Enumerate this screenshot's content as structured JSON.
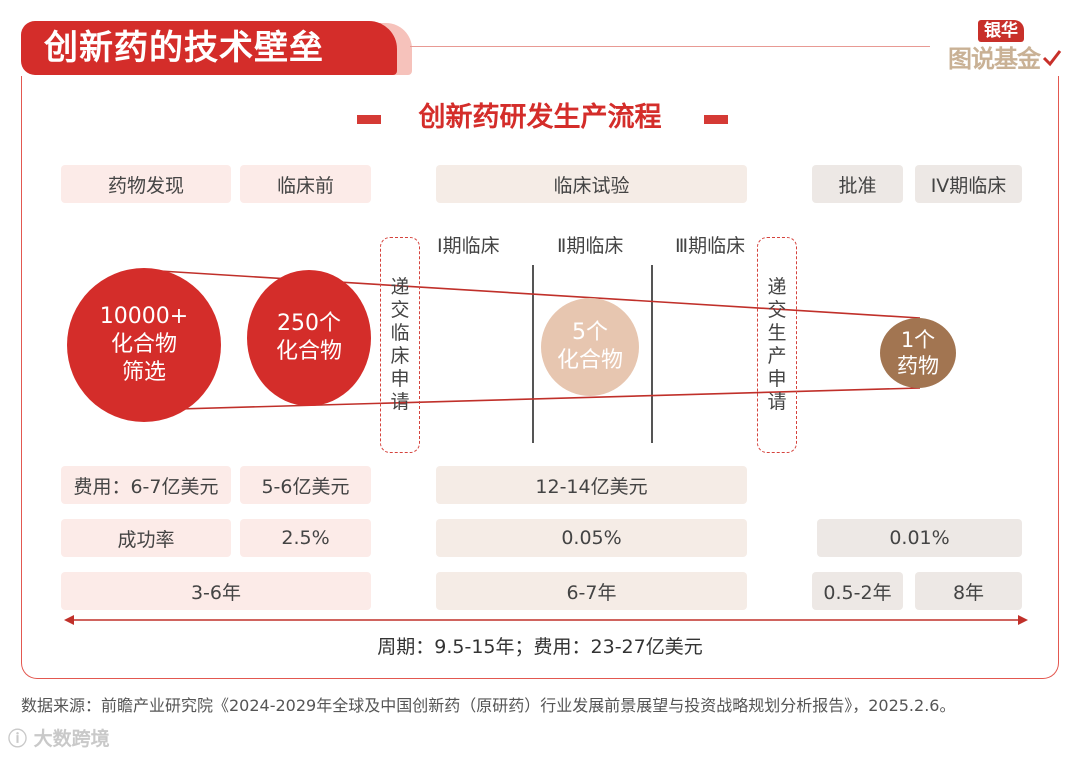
{
  "header": {
    "title": "创新药的技术壁垒"
  },
  "logo": {
    "top": "银华",
    "bottom": "图说基金"
  },
  "subtitle": "创新药研发生产流程",
  "stages": {
    "discovery": "药物发现",
    "preclinical": "临床前",
    "clinical": "临床试验",
    "approval": "批准",
    "phase4": "IV期临床"
  },
  "phases": {
    "p1": "Ⅰ期临床",
    "p2": "Ⅱ期临床",
    "p3": "Ⅲ期临床"
  },
  "filings": {
    "ind": [
      "递",
      "交",
      "临",
      "床",
      "申",
      "请"
    ],
    "nda": [
      "递",
      "交",
      "生",
      "产",
      "申",
      "请"
    ]
  },
  "circles": {
    "c1": [
      "10000+",
      "化合物",
      "筛选"
    ],
    "c2": [
      "250个",
      "化合物"
    ],
    "c3": [
      "5个",
      "化合物"
    ],
    "c4": [
      "1个",
      "药物"
    ]
  },
  "cost": {
    "discovery": "费用：6-7亿美元",
    "preclinical": "5-6亿美元",
    "clinical": "12-14亿美元"
  },
  "success": {
    "label": "成功率",
    "preclinical": "2.5%",
    "clinical": "0.05%",
    "approval": "0.01%"
  },
  "duration": {
    "early": "3-6年",
    "clinical": "6-7年",
    "approval": "0.5-2年",
    "phase4": "8年"
  },
  "total": "周期：9.5-15年；费用：23-27亿美元",
  "source": "数据来源：前瞻产业研究院《2024-2029年全球及中国创新药（原研药）行业发展前景展望与投资战略规划分析报告》，2025.2.6。",
  "watermark": "ⓘ 大数跨境",
  "colors": {
    "red": "#d42d2a",
    "pink": "#fcebe8",
    "beige": "#f5ece6",
    "brown": "#a27551",
    "tan": "#e7c6b0"
  }
}
